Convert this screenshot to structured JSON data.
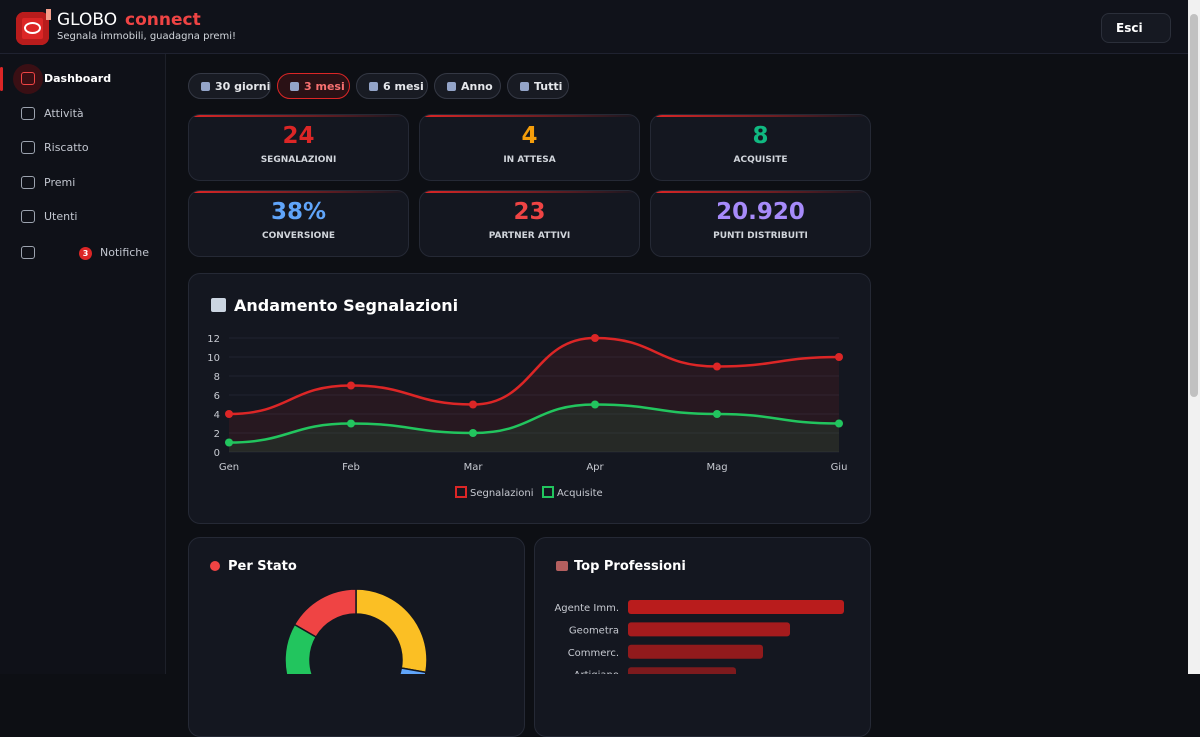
{
  "header": {
    "brand": "GLOBO",
    "brand_accent": "connect",
    "tagline": "Segnala immobili, guadagna premi!",
    "logout": "Esci"
  },
  "sidebar": {
    "items": [
      "Dashboard",
      "Attività",
      "Riscatto",
      "Premi",
      "Utenti",
      "Notifiche"
    ],
    "active": 0,
    "badge_item": 5,
    "badge": "3"
  },
  "filters": {
    "options": [
      "30 giorni",
      "3 mesi",
      "6 mesi",
      "Anno",
      "Tutti"
    ],
    "active": 1
  },
  "stats": [
    {
      "value": "24",
      "label": "SEGNALAZIONI",
      "color": "#dc2626"
    },
    {
      "value": "4",
      "label": "IN ATTESA",
      "color": "#f59e0b"
    },
    {
      "value": "8",
      "label": "ACQUISITE",
      "color": "#10b981"
    },
    {
      "value": "38%",
      "label": "CONVERSIONE",
      "color": "#60a5fa"
    },
    {
      "value": "23",
      "label": "PARTNER ATTIVI",
      "color": "#ef4444"
    },
    {
      "value": "20.920",
      "label": "PUNTI DISTRIBUITI",
      "color": "#a78bfa"
    }
  ],
  "chart_data": [
    {
      "type": "line",
      "title": "Andamento Segnalazioni",
      "categories": [
        "Gen",
        "Feb",
        "Mar",
        "Apr",
        "Mag",
        "Giu"
      ],
      "series": [
        {
          "name": "Segnalazioni",
          "color": "#dc2626",
          "values": [
            4,
            7,
            5,
            12,
            9,
            10
          ]
        },
        {
          "name": "Acquisite",
          "color": "#22c55e",
          "values": [
            1,
            3,
            2,
            5,
            4,
            3
          ]
        }
      ],
      "ylim": [
        0,
        12
      ],
      "yticks": [
        0,
        2,
        4,
        6,
        8,
        10,
        12
      ],
      "grid": true
    },
    {
      "type": "donut",
      "title": "Per Stato",
      "values": [
        5,
        4,
        6,
        3
      ],
      "colors": [
        "#fbbf24",
        "#60a5fa",
        "#22c55e",
        "#ef4444"
      ]
    },
    {
      "type": "hbar",
      "title": "Top Professioni",
      "categories": [
        "Agente Imm.",
        "Geometra",
        "Commerc.",
        "Artigiano"
      ],
      "values": [
        8,
        6,
        5,
        4
      ],
      "color": "#b91c1c"
    }
  ]
}
